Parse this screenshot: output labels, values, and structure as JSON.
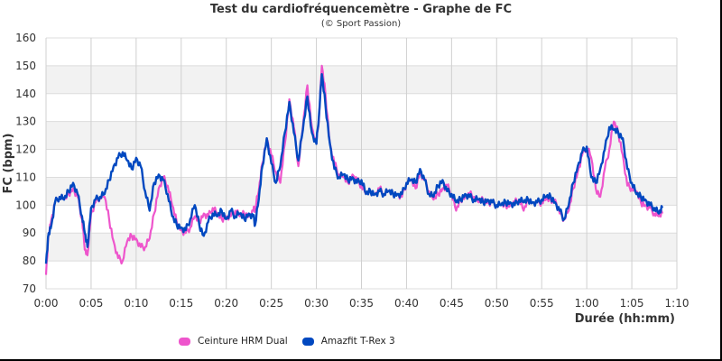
{
  "chart_data": {
    "type": "line",
    "title": "Test du cardiofréquencemètre - Graphe de FC",
    "subtitle": "(© Sport Passion)",
    "xlabel": "Durée (hh:mm)",
    "ylabel": "FC (bpm)",
    "xlim_minutes": [
      0,
      70
    ],
    "ylim": [
      70,
      160
    ],
    "x_ticks": [
      "0:00",
      "0:05",
      "0:10",
      "0:15",
      "0:20",
      "0:25",
      "0:30",
      "0:35",
      "0:40",
      "0:45",
      "0:50",
      "0:55",
      "1:00",
      "1:05",
      "1:10"
    ],
    "y_ticks": [
      70,
      80,
      90,
      100,
      110,
      120,
      130,
      140,
      150,
      160
    ],
    "grid": true,
    "shaded_bands": [
      [
        80,
        90
      ],
      [
        100,
        110
      ],
      [
        120,
        130
      ],
      [
        140,
        150
      ]
    ],
    "legend_position": "bottom",
    "series": [
      {
        "name": "Ceinture HRM Dual",
        "color": "#ee55cc",
        "x_minutes": [
          0,
          0.3,
          0.6,
          1,
          1.5,
          2,
          2.5,
          3,
          3.5,
          4,
          4.3,
          4.6,
          5,
          5.5,
          6,
          6.5,
          7,
          7.5,
          8,
          8.5,
          9,
          9.5,
          10,
          10.5,
          11,
          11.5,
          12,
          12.5,
          13,
          13.5,
          14,
          14.5,
          15,
          15.5,
          16,
          16.5,
          17,
          17.5,
          18,
          18.5,
          19,
          19.5,
          20,
          20.5,
          21,
          21.5,
          22,
          22.5,
          23,
          23.2,
          23.6,
          24,
          24.5,
          25,
          25.5,
          26,
          26.5,
          27,
          27.5,
          28,
          28.5,
          29,
          29.5,
          30,
          30.3,
          30.6,
          31,
          31.5,
          32,
          32.5,
          33,
          33.5,
          34,
          34.5,
          35,
          35.5,
          36,
          36.5,
          37,
          37.5,
          38,
          38.5,
          39,
          39.5,
          40,
          40.5,
          41,
          41.5,
          42,
          42.5,
          43,
          43.5,
          44,
          44.5,
          45,
          45.5,
          46,
          46.5,
          47,
          47.5,
          48,
          48.5,
          49,
          49.5,
          50,
          50.5,
          51,
          51.5,
          52,
          52.5,
          53,
          53.5,
          54,
          54.5,
          55,
          55.5,
          56,
          56.5,
          57,
          57.5,
          58,
          58.5,
          59,
          59.5,
          60,
          60.5,
          61,
          61.5,
          62,
          62.5,
          63,
          63.5,
          64,
          64.5,
          65,
          65.5,
          66,
          66.5,
          67,
          67.5,
          68,
          68.4
        ],
        "values": [
          75,
          90,
          95,
          101,
          103,
          102,
          104,
          106,
          103,
          95,
          84,
          82,
          97,
          101,
          103,
          103,
          95,
          87,
          81,
          80,
          87,
          89,
          88,
          85,
          85,
          88,
          97,
          106,
          110,
          107,
          100,
          94,
          91,
          90,
          92,
          96,
          94,
          97,
          96,
          99,
          97,
          95,
          96,
          96,
          98,
          96,
          97,
          96,
          98,
          99,
          105,
          115,
          124,
          118,
          112,
          108,
          122,
          138,
          128,
          114,
          128,
          143,
          128,
          122,
          132,
          150,
          140,
          122,
          115,
          111,
          110,
          108,
          111,
          109,
          107,
          104,
          105,
          104,
          106,
          104,
          105,
          104,
          104,
          103,
          108,
          109,
          106,
          112,
          109,
          105,
          102,
          104,
          106,
          107,
          104,
          98,
          102,
          103,
          104,
          103,
          101,
          102,
          101,
          101,
          100,
          100,
          100,
          100,
          101,
          102,
          98,
          102,
          101,
          101,
          101,
          102,
          102,
          102,
          97,
          95,
          98,
          106,
          112,
          118,
          121,
          117,
          106,
          103,
          113,
          120,
          130,
          126,
          118,
          107,
          106,
          105,
          101,
          100,
          99,
          97,
          96,
          97
        ]
      },
      {
        "name": "Amazfit T-Rex 3",
        "color": "#0048c0",
        "x_minutes": [
          0,
          0.3,
          0.6,
          1,
          1.5,
          2,
          2.5,
          3,
          3.5,
          4,
          4.3,
          4.6,
          5,
          5.5,
          6,
          6.5,
          7,
          7.5,
          8,
          8.5,
          9,
          9.5,
          10,
          10.5,
          11,
          11.5,
          12,
          12.5,
          13,
          13.5,
          14,
          14.5,
          15,
          15.5,
          16,
          16.5,
          17,
          17.5,
          18,
          18.5,
          19,
          19.5,
          20,
          20.5,
          21,
          21.5,
          22,
          22.5,
          23,
          23.2,
          23.6,
          24,
          24.5,
          25,
          25.5,
          26,
          26.5,
          27,
          27.5,
          28,
          28.5,
          29,
          29.5,
          30,
          30.3,
          30.6,
          31,
          31.5,
          32,
          32.5,
          33,
          33.5,
          34,
          34.5,
          35,
          35.5,
          36,
          36.5,
          37,
          37.5,
          38,
          38.5,
          39,
          39.5,
          40,
          40.5,
          41,
          41.5,
          42,
          42.5,
          43,
          43.5,
          44,
          44.5,
          45,
          45.5,
          46,
          46.5,
          47,
          47.5,
          48,
          48.5,
          49,
          49.5,
          50,
          50.5,
          51,
          51.5,
          52,
          52.5,
          53,
          53.5,
          54,
          54.5,
          55,
          55.5,
          56,
          56.5,
          57,
          57.5,
          58,
          58.5,
          59,
          59.5,
          60,
          60.5,
          61,
          61.5,
          62,
          62.5,
          63,
          63.5,
          64,
          64.5,
          65,
          65.5,
          66,
          66.5,
          67,
          67.5,
          68,
          68.4
        ],
        "values": [
          79,
          90,
          93,
          101,
          103,
          102,
          105,
          108,
          104,
          96,
          90,
          85,
          99,
          102,
          103,
          104,
          109,
          114,
          117,
          119,
          116,
          113,
          117,
          114,
          105,
          98,
          108,
          111,
          109,
          104,
          96,
          93,
          92,
          91,
          95,
          100,
          93,
          89,
          94,
          97,
          96,
          98,
          95,
          98,
          96,
          97,
          95,
          97,
          96,
          93,
          102,
          114,
          124,
          115,
          108,
          114,
          126,
          137,
          126,
          116,
          127,
          139,
          126,
          122,
          133,
          147,
          136,
          122,
          113,
          110,
          111,
          109,
          110,
          108,
          109,
          104,
          105,
          104,
          105,
          104,
          105,
          104,
          104,
          104,
          108,
          109,
          108,
          113,
          109,
          104,
          103,
          107,
          109,
          105,
          104,
          101,
          102,
          104,
          103,
          102,
          102,
          101,
          102,
          101,
          100,
          100,
          101,
          101,
          100,
          102,
          101,
          102,
          101,
          101,
          102,
          103,
          103,
          101,
          98,
          95,
          100,
          108,
          114,
          119,
          121,
          110,
          108,
          113,
          120,
          128,
          127,
          126,
          124,
          113,
          108,
          104,
          103,
          102,
          100,
          99,
          97,
          99
        ]
      }
    ]
  }
}
